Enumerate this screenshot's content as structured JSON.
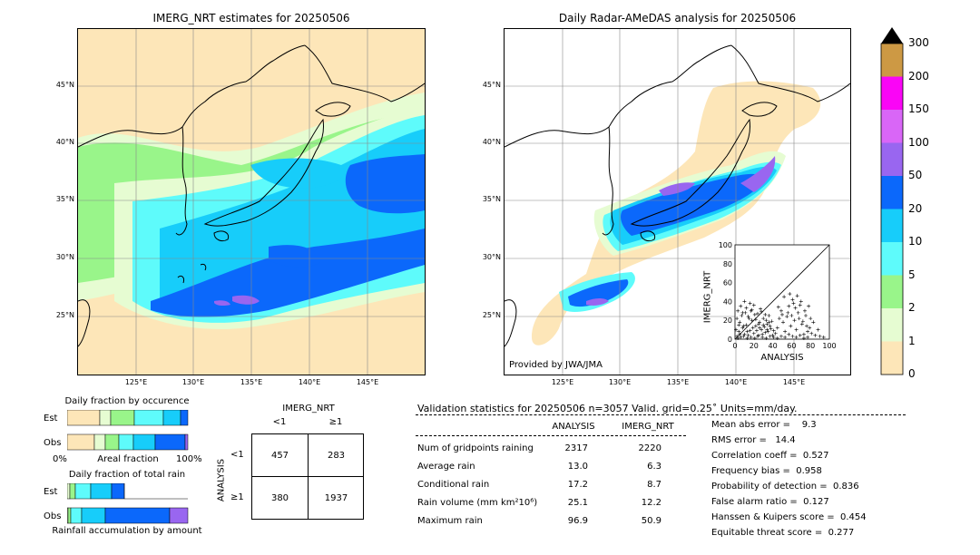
{
  "left_map": {
    "title": "IMERG_NRT estimates for 20250506",
    "lat_labels": [
      "45°N",
      "40°N",
      "35°N",
      "30°N",
      "25°N"
    ],
    "lon_labels": [
      "125°E",
      "130°E",
      "135°E",
      "140°E",
      "145°E"
    ]
  },
  "right_map": {
    "title": "Daily Radar-AMeDAS analysis for 20250506",
    "lat_labels": [
      "45°N",
      "40°N",
      "35°N",
      "30°N",
      "25°N"
    ],
    "lon_labels": [
      "125°E",
      "130°E",
      "135°E",
      "140°E",
      "145°E"
    ],
    "credit": "Provided by JWA/JMA"
  },
  "colorbar": {
    "labels": [
      "0",
      "1",
      "2",
      "5",
      "10",
      "20",
      "50",
      "100",
      "150",
      "200",
      "300"
    ],
    "colors": [
      "#fde6b8",
      "#e6fcd2",
      "#99f58a",
      "#5efbfb",
      "#17cdfa",
      "#0b68fb",
      "#9966f0",
      "#d966f7",
      "#fa05f6",
      "#cd9944"
    ]
  },
  "occurrence": {
    "title": "Daily fraction by occurence",
    "rows": [
      "Est",
      "Obs"
    ],
    "xticks": [
      "0%",
      "Areal fraction",
      "100%"
    ]
  },
  "total_rain": {
    "title": "Daily fraction of total rain",
    "rows": [
      "Est",
      "Obs"
    ],
    "xlabel": "Rainfall accumulation by amount"
  },
  "contingency": {
    "col_header": "IMERG_NRT",
    "col_labels": [
      "<1",
      "≥1"
    ],
    "row_header": "ANALYSIS",
    "row_labels": [
      "<1",
      "≥1"
    ],
    "cells": [
      [
        "457",
        "283"
      ],
      [
        "380",
        "1937"
      ]
    ]
  },
  "stats": {
    "title": "Validation statistics for 20250506  n=3057 Valid. grid=0.25˚ Units=mm/day.",
    "col_headers": [
      "ANALYSIS",
      "IMERG_NRT"
    ],
    "rows": [
      {
        "label": "Num of gridpoints raining",
        "a": "2317",
        "b": "2220"
      },
      {
        "label": "Average rain",
        "a": "13.0",
        "b": "6.3"
      },
      {
        "label": "Conditional rain",
        "a": "17.2",
        "b": "8.7"
      },
      {
        "label": "Rain volume (mm km²10⁶)",
        "a": "25.1",
        "b": "12.2"
      },
      {
        "label": "Maximum rain",
        "a": "96.9",
        "b": "50.9"
      }
    ],
    "scores": [
      "Mean abs error =    9.3",
      "RMS error =   14.4",
      "Correlation coeff =  0.527",
      "Frequency bias =  0.958",
      "Probability of detection =  0.836",
      "False alarm ratio =  0.127",
      "Hanssen & Kuipers score =  0.454",
      "Equitable threat score =  0.277"
    ]
  },
  "chart_data": {
    "type": "scatter",
    "xlabel": "ANALYSIS",
    "ylabel": "IMERG_NRT",
    "xlim": [
      0,
      100
    ],
    "ylim": [
      0,
      100
    ],
    "xticks": [
      "0",
      "20",
      "40",
      "60",
      "80",
      "100"
    ],
    "yticks": [
      "0",
      "20",
      "40",
      "60",
      "80",
      "100"
    ],
    "points": [
      [
        2,
        3
      ],
      [
        4,
        8
      ],
      [
        6,
        2
      ],
      [
        8,
        12
      ],
      [
        10,
        5
      ],
      [
        12,
        15
      ],
      [
        14,
        4
      ],
      [
        16,
        9
      ],
      [
        18,
        20
      ],
      [
        20,
        6
      ],
      [
        22,
        14
      ],
      [
        24,
        3
      ],
      [
        26,
        18
      ],
      [
        28,
        10
      ],
      [
        30,
        22
      ],
      [
        32,
        7
      ],
      [
        34,
        16
      ],
      [
        36,
        25
      ],
      [
        38,
        11
      ],
      [
        40,
        4
      ],
      [
        5,
        18
      ],
      [
        7,
        25
      ],
      [
        9,
        14
      ],
      [
        11,
        28
      ],
      [
        13,
        8
      ],
      [
        15,
        22
      ],
      [
        17,
        30
      ],
      [
        19,
        12
      ],
      [
        21,
        26
      ],
      [
        23,
        9
      ],
      [
        25,
        16
      ],
      [
        27,
        32
      ],
      [
        29,
        5
      ],
      [
        31,
        13
      ],
      [
        33,
        20
      ],
      [
        35,
        8
      ],
      [
        37,
        14
      ],
      [
        39,
        19
      ],
      [
        41,
        9
      ],
      [
        43,
        6
      ],
      [
        45,
        12
      ],
      [
        47,
        22
      ],
      [
        49,
        30
      ],
      [
        51,
        18
      ],
      [
        53,
        8
      ],
      [
        55,
        24
      ],
      [
        57,
        35
      ],
      [
        59,
        14
      ],
      [
        61,
        42
      ],
      [
        63,
        20
      ],
      [
        65,
        10
      ],
      [
        67,
        28
      ],
      [
        69,
        36
      ],
      [
        71,
        16
      ],
      [
        73,
        5
      ],
      [
        75,
        25
      ],
      [
        77,
        8
      ],
      [
        79,
        12
      ],
      [
        81,
        6
      ],
      [
        83,
        18
      ],
      [
        85,
        4
      ],
      [
        88,
        10
      ],
      [
        90,
        3
      ],
      [
        94,
        2
      ],
      [
        52,
        45
      ],
      [
        58,
        48
      ],
      [
        62,
        38
      ],
      [
        66,
        46
      ],
      [
        70,
        40
      ],
      [
        74,
        30
      ],
      [
        78,
        35
      ],
      [
        56,
        28
      ],
      [
        60,
        25
      ],
      [
        64,
        33
      ],
      [
        68,
        22
      ],
      [
        72,
        19
      ],
      [
        76,
        14
      ],
      [
        80,
        22
      ],
      [
        46,
        34
      ],
      [
        50,
        26
      ],
      [
        3,
        1
      ],
      [
        5,
        5
      ],
      [
        9,
        3
      ],
      [
        13,
        1
      ],
      [
        17,
        2
      ],
      [
        21,
        1
      ],
      [
        25,
        4
      ],
      [
        29,
        2
      ],
      [
        33,
        1
      ],
      [
        37,
        3
      ],
      [
        41,
        2
      ],
      [
        45,
        1
      ],
      [
        49,
        3
      ],
      [
        53,
        2
      ],
      [
        57,
        5
      ],
      [
        61,
        3
      ],
      [
        65,
        2
      ],
      [
        69,
        4
      ],
      [
        73,
        1
      ],
      [
        77,
        2
      ],
      [
        1,
        10
      ],
      [
        2,
        22
      ],
      [
        3,
        30
      ],
      [
        4,
        15
      ],
      [
        6,
        35
      ],
      [
        8,
        28
      ],
      [
        10,
        40
      ],
      [
        12,
        33
      ],
      [
        14,
        24
      ],
      [
        16,
        38
      ],
      [
        18,
        31
      ],
      [
        20,
        36
      ],
      [
        22,
        21
      ],
      [
        24,
        27
      ],
      [
        26,
        12
      ],
      [
        28,
        29
      ],
      [
        30,
        15
      ],
      [
        32,
        26
      ],
      [
        34,
        10
      ],
      [
        36,
        18
      ]
    ]
  }
}
